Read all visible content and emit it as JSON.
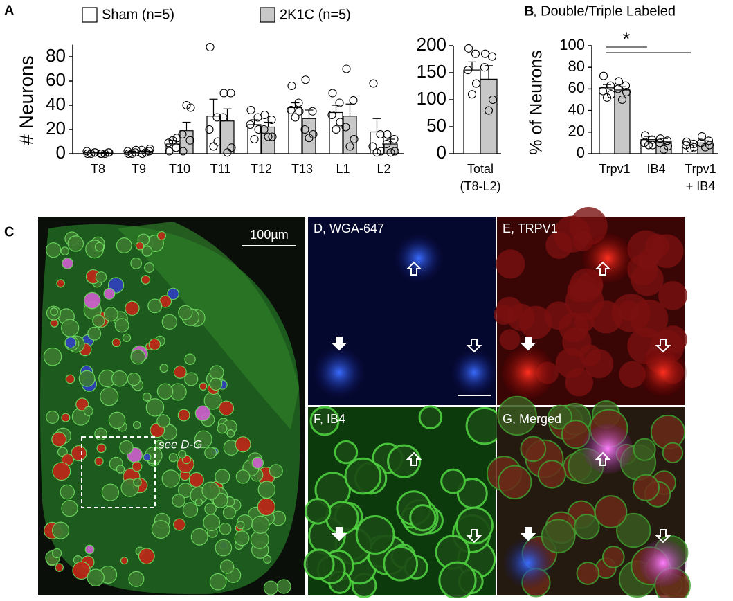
{
  "panel_labels": [
    "A",
    "C"
  ],
  "chart_data": [
    {
      "type": "bar",
      "ylabel": "# Neurons",
      "categories": [
        "T8",
        "T9",
        "T10",
        "T11",
        "T12",
        "T13",
        "L1",
        "L2"
      ],
      "ylim": [
        0,
        90
      ],
      "yticks": [
        0,
        20,
        40,
        60,
        80
      ],
      "series": [
        {
          "name": "Sham (n=5)",
          "color": "#ffffff",
          "values": [
            1,
            1,
            8,
            31,
            24,
            38,
            34,
            18
          ],
          "errors": [
            0.5,
            1,
            3,
            14,
            4,
            4,
            6,
            11
          ],
          "points": [
            [
              0,
              1,
              2,
              1,
              0
            ],
            [
              0,
              1,
              2,
              3,
              0
            ],
            [
              2,
              5,
              9,
              13,
              11
            ],
            [
              88,
              30,
              20,
              10,
              6
            ],
            [
              36,
              30,
              24,
              20,
              12
            ],
            [
              56,
              42,
              36,
              35,
              30
            ],
            [
              50,
              42,
              32,
              26,
              20
            ],
            [
              58,
              16,
              6,
              2,
              1
            ]
          ]
        },
        {
          "name": "2K1C (n=5)",
          "color": "#c8c8c8",
          "values": [
            0.5,
            2,
            19,
            27,
            22,
            29,
            31,
            8
          ],
          "errors": [
            0.5,
            1,
            7,
            10,
            4,
            7,
            10,
            4
          ],
          "points": [
            [
              0,
              1,
              0,
              1,
              0
            ],
            [
              0,
              2,
              3,
              4,
              1
            ],
            [
              2,
              11,
              16,
              38,
              40
            ],
            [
              50,
              50,
              30,
              5,
              1
            ],
            [
              32,
              28,
              20,
              14,
              14
            ],
            [
              61,
              35,
              20,
              16,
              13
            ],
            [
              70,
              44,
              22,
              12,
              6
            ],
            [
              16,
              12,
              8,
              2,
              1
            ]
          ]
        }
      ]
    },
    {
      "type": "bar",
      "categories": [
        [
          "Total",
          "(T8-L2)"
        ]
      ],
      "ylim": [
        0,
        200
      ],
      "yticks": [
        0,
        50,
        100,
        150,
        200
      ],
      "series": [
        {
          "color": "#ffffff",
          "values": [
            155
          ],
          "errors": [
            15
          ],
          "points": [
            [
              195,
              185,
              155,
              130,
              110
            ]
          ]
        },
        {
          "color": "#c8c8c8",
          "values": [
            138
          ],
          "errors": [
            25
          ],
          "points": [
            [
              185,
              180,
              160,
              100,
              80
            ]
          ]
        }
      ]
    },
    {
      "type": "bar",
      "panel_label": "B",
      "title": ", Double/Triple Labeled",
      "ylabel": "% of Neurons",
      "categories": [
        "Trpv1",
        "IB4",
        [
          "Trpv1",
          "+ IB4"
        ]
      ],
      "ylim": [
        0,
        100
      ],
      "yticks": [
        0,
        20,
        40,
        60,
        80,
        100
      ],
      "annotation": "*",
      "series": [
        {
          "color": "#ffffff",
          "values": [
            61,
            13,
            8
          ],
          "errors": [
            3,
            3,
            2
          ],
          "points": [
            [
              72,
              63,
              58,
              55,
              52
            ],
            [
              17,
              13,
              10,
              8,
              8
            ],
            [
              11,
              9,
              8,
              6,
              5
            ]
          ]
        },
        {
          "color": "#c8c8c8",
          "values": [
            59,
            11,
            10
          ],
          "errors": [
            3,
            3,
            2
          ],
          "points": [
            [
              67,
              63,
              60,
              57,
              50
            ],
            [
              14,
              12,
              10,
              7,
              4
            ],
            [
              16,
              12,
              10,
              8,
              6
            ]
          ]
        }
      ]
    }
  ],
  "images": {
    "scale_bar": "100µm",
    "inset_label": "see D-G",
    "panels": [
      "D, WGA-647",
      "E, TRPV1",
      "F, IB4",
      "G, Merged"
    ]
  }
}
